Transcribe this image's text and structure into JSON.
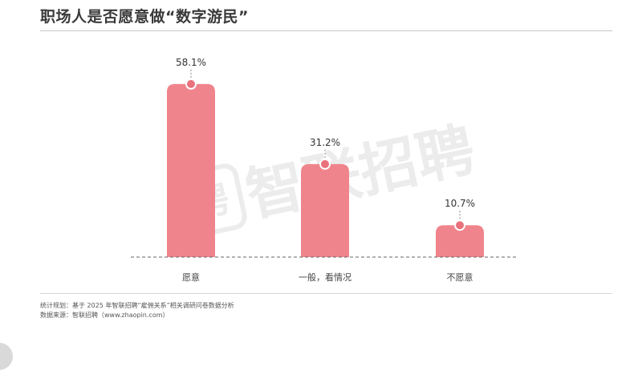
{
  "header": {
    "title": "职场人是否愿意做“数字游民”"
  },
  "watermark": {
    "text": "智联招聘",
    "glyph": "聘"
  },
  "chart_data": {
    "type": "bar",
    "categories": [
      "愿意",
      "一般，看情况",
      "不愿意"
    ],
    "values": [
      58.1,
      31.2,
      10.7
    ],
    "data_labels": [
      "58.1%",
      "31.2%",
      "10.7%"
    ],
    "title": "",
    "xlabel": "",
    "ylabel": "",
    "ylim": [
      0,
      70
    ],
    "grid": false,
    "legend": "none",
    "bar_color": "#f0848c",
    "marker_color": "#e9727c",
    "baseline_style": "dashed"
  },
  "footer": {
    "method_note": "统计规划：基于 2025 年智联招聘“雇佣关系”相关调研问卷数据分析",
    "source_note": "数据来源：智联招聘（www.zhaopin.com）"
  }
}
